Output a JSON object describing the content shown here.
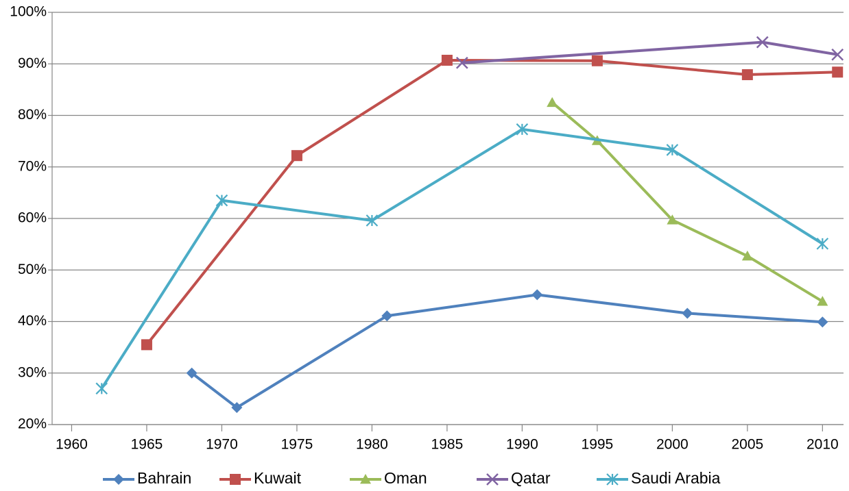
{
  "chart_data": {
    "type": "line",
    "xlim": [
      1958.7,
      2011.4
    ],
    "xticks": [
      1960,
      1965,
      1970,
      1975,
      1980,
      1985,
      1990,
      1995,
      2000,
      2005,
      2010
    ],
    "ylim": [
      20,
      100
    ],
    "yticks": [
      {
        "value": 20,
        "label": "20%"
      },
      {
        "value": 30,
        "label": "30%"
      },
      {
        "value": 40,
        "label": "40%"
      },
      {
        "value": 50,
        "label": "50%"
      },
      {
        "value": 60,
        "label": "60%"
      },
      {
        "value": 70,
        "label": "70%"
      },
      {
        "value": 80,
        "label": "80%"
      },
      {
        "value": 90,
        "label": "90%"
      },
      {
        "value": 100,
        "label": "100%"
      }
    ],
    "grid": true,
    "legend": "bottom",
    "series": [
      {
        "name": "Bahrain",
        "color": "#4f81bd",
        "marker": "diamond",
        "x": [
          1968,
          1971,
          1981,
          1991,
          2001,
          2010
        ],
        "values": [
          30.0,
          23.3,
          41.1,
          45.2,
          41.6,
          39.9
        ]
      },
      {
        "name": "Kuwait",
        "color": "#c0504d",
        "marker": "square",
        "x": [
          1965,
          1975,
          1985,
          1995,
          2005,
          2011
        ],
        "values": [
          35.5,
          72.2,
          90.7,
          90.6,
          87.9,
          88.4
        ]
      },
      {
        "name": "Oman",
        "color": "#9bbb59",
        "marker": "triangle",
        "x": [
          1992,
          1995,
          2000,
          2005,
          2010
        ],
        "values": [
          82.5,
          75.1,
          59.7,
          52.7,
          43.9
        ]
      },
      {
        "name": "Qatar",
        "color": "#8064a2",
        "marker": "x",
        "x": [
          1986,
          2006,
          2011
        ],
        "values": [
          90.2,
          94.2,
          91.8
        ]
      },
      {
        "name": "Saudi Arabia",
        "color": "#4bacc6",
        "marker": "star",
        "x": [
          1962,
          1970,
          1980,
          1990,
          2000,
          2010
        ],
        "values": [
          27.0,
          63.5,
          59.6,
          77.3,
          73.3,
          55.1
        ]
      }
    ]
  }
}
